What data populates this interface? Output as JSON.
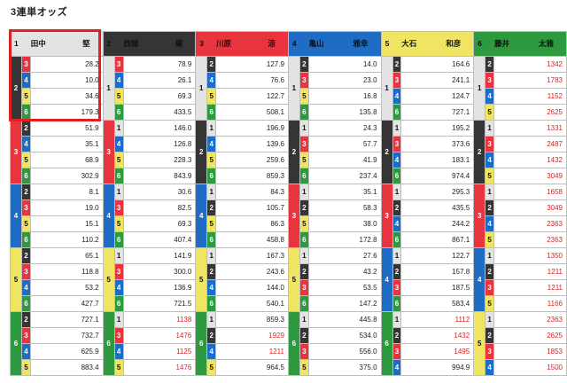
{
  "page_title": "3連単オッズ",
  "colors": {
    "1": "#ffffff",
    "2": "#353535",
    "3": "#e8343f",
    "4": "#1e6cc4",
    "5": "#f0e562",
    "6": "#2e9a3f",
    "highlight": "#e02020",
    "hot_odds": "#e21c1c"
  },
  "racers": [
    {
      "num": "1",
      "name": "田中",
      "given": "堅"
    },
    {
      "num": "2",
      "name": "西舘",
      "given": "健"
    },
    {
      "num": "3",
      "name": "川原",
      "given": "涼"
    },
    {
      "num": "4",
      "name": "亀山",
      "given": "雅幸"
    },
    {
      "num": "5",
      "name": "大石",
      "given": "和彦"
    },
    {
      "num": "6",
      "name": "藤井",
      "given": "太雅"
    }
  ],
  "hot_threshold": 1000,
  "blocks": [
    {
      "s": [
        "2",
        "3",
        "4",
        "5",
        "6",
        "3",
        "4",
        "5",
        "6",
        "2",
        "4",
        "5",
        "6",
        "2",
        "3",
        "5",
        "6",
        "2",
        "3",
        "4",
        "6",
        "2",
        "3",
        "4",
        "5"
      ],
      "t": [
        "3",
        "4",
        "5",
        "6",
        "2",
        "4",
        "5",
        "6",
        "2",
        "3",
        "5",
        "6",
        "2",
        "3",
        "4",
        "6",
        "2",
        "3",
        "4",
        "5",
        "2",
        "3",
        "4",
        "5",
        "2"
      ]
    }
  ],
  "columns": [
    {
      "first": "1",
      "rows": [
        [
          "2",
          "3",
          "28.2"
        ],
        [
          "2",
          "4",
          "10.0"
        ],
        [
          "2",
          "5",
          "34.6"
        ],
        [
          "2",
          "6",
          "179.3"
        ],
        [
          "3",
          "2",
          "51.9"
        ],
        [
          "3",
          "4",
          "35.1"
        ],
        [
          "3",
          "5",
          "68.9"
        ],
        [
          "3",
          "6",
          "302.9"
        ],
        [
          "4",
          "2",
          "8.1"
        ],
        [
          "4",
          "3",
          "19.0"
        ],
        [
          "4",
          "5",
          "15.1"
        ],
        [
          "4",
          "6",
          "110.2"
        ],
        [
          "5",
          "2",
          "65.1"
        ],
        [
          "5",
          "3",
          "118.8"
        ],
        [
          "5",
          "4",
          "53.2"
        ],
        [
          "5",
          "6",
          "427.7"
        ],
        [
          "6",
          "2",
          "727.1"
        ],
        [
          "6",
          "3",
          "732.7"
        ],
        [
          "6",
          "4",
          "625.9"
        ],
        [
          "6",
          "5",
          "883.4"
        ]
      ]
    },
    {
      "first": "2",
      "rows": [
        [
          "1",
          "3",
          "78.9"
        ],
        [
          "1",
          "4",
          "26.1"
        ],
        [
          "1",
          "5",
          "69.3"
        ],
        [
          "1",
          "6",
          "433.5"
        ],
        [
          "3",
          "1",
          "146.0"
        ],
        [
          "3",
          "4",
          "126.8"
        ],
        [
          "3",
          "5",
          "228.3"
        ],
        [
          "3",
          "6",
          "843.9"
        ],
        [
          "4",
          "1",
          "30.6"
        ],
        [
          "4",
          "3",
          "82.5"
        ],
        [
          "4",
          "5",
          "69.3"
        ],
        [
          "4",
          "6",
          "407.4"
        ],
        [
          "5",
          "1",
          "141.9"
        ],
        [
          "5",
          "3",
          "300.0"
        ],
        [
          "5",
          "4",
          "136.9"
        ],
        [
          "5",
          "6",
          "721.5"
        ],
        [
          "6",
          "1",
          "1138"
        ],
        [
          "6",
          "3",
          "1476"
        ],
        [
          "6",
          "4",
          "1125"
        ],
        [
          "6",
          "5",
          "1476"
        ]
      ]
    },
    {
      "first": "3",
      "rows": [
        [
          "1",
          "2",
          "127.9"
        ],
        [
          "1",
          "4",
          "76.6"
        ],
        [
          "1",
          "5",
          "122.7"
        ],
        [
          "1",
          "6",
          "508.1"
        ],
        [
          "2",
          "1",
          "196.9"
        ],
        [
          "2",
          "4",
          "139.6"
        ],
        [
          "2",
          "5",
          "259.6"
        ],
        [
          "2",
          "6",
          "859.3"
        ],
        [
          "4",
          "1",
          "84.3"
        ],
        [
          "4",
          "2",
          "105.7"
        ],
        [
          "4",
          "5",
          "86.3"
        ],
        [
          "4",
          "6",
          "458.8"
        ],
        [
          "5",
          "1",
          "167.3"
        ],
        [
          "5",
          "2",
          "243.6"
        ],
        [
          "5",
          "4",
          "144.0"
        ],
        [
          "5",
          "6",
          "540.1"
        ],
        [
          "6",
          "1",
          "859.3"
        ],
        [
          "6",
          "2",
          "1929"
        ],
        [
          "6",
          "4",
          "1211"
        ],
        [
          "6",
          "5",
          "964.5"
        ]
      ]
    },
    {
      "first": "4",
      "rows": [
        [
          "1",
          "2",
          "14.0"
        ],
        [
          "1",
          "3",
          "23.0"
        ],
        [
          "1",
          "5",
          "16.8"
        ],
        [
          "1",
          "6",
          "135.8"
        ],
        [
          "2",
          "1",
          "24.3"
        ],
        [
          "2",
          "3",
          "57.7"
        ],
        [
          "2",
          "5",
          "41.9"
        ],
        [
          "2",
          "6",
          "237.4"
        ],
        [
          "3",
          "1",
          "35.1"
        ],
        [
          "3",
          "2",
          "58.3"
        ],
        [
          "3",
          "5",
          "38.0"
        ],
        [
          "3",
          "6",
          "172.8"
        ],
        [
          "5",
          "1",
          "27.6"
        ],
        [
          "5",
          "2",
          "43.2"
        ],
        [
          "5",
          "3",
          "53.5"
        ],
        [
          "5",
          "6",
          "147.2"
        ],
        [
          "6",
          "1",
          "445.8"
        ],
        [
          "6",
          "2",
          "534.0"
        ],
        [
          "6",
          "3",
          "556.0"
        ],
        [
          "6",
          "5",
          "375.0"
        ]
      ]
    },
    {
      "first": "5",
      "rows": [
        [
          "1",
          "2",
          "164.6"
        ],
        [
          "1",
          "3",
          "241.1"
        ],
        [
          "1",
          "4",
          "124.7"
        ],
        [
          "1",
          "6",
          "727.1"
        ],
        [
          "2",
          "1",
          "195.2"
        ],
        [
          "2",
          "3",
          "373.6"
        ],
        [
          "2",
          "4",
          "183.1"
        ],
        [
          "2",
          "6",
          "974.4"
        ],
        [
          "3",
          "1",
          "295.3"
        ],
        [
          "3",
          "2",
          "435.5"
        ],
        [
          "3",
          "4",
          "244.2"
        ],
        [
          "3",
          "6",
          "867.1"
        ],
        [
          "4",
          "1",
          "122.7"
        ],
        [
          "4",
          "2",
          "157.8"
        ],
        [
          "4",
          "3",
          "187.5"
        ],
        [
          "4",
          "6",
          "583.4"
        ],
        [
          "6",
          "1",
          "1112"
        ],
        [
          "6",
          "2",
          "1432"
        ],
        [
          "6",
          "3",
          "1495"
        ],
        [
          "6",
          "4",
          "994.9"
        ]
      ]
    },
    {
      "first": "6",
      "rows": [
        [
          "1",
          "2",
          "1342"
        ],
        [
          "1",
          "3",
          "1783"
        ],
        [
          "1",
          "4",
          "1152"
        ],
        [
          "1",
          "5",
          "2625"
        ],
        [
          "2",
          "1",
          "1331"
        ],
        [
          "2",
          "3",
          "2487"
        ],
        [
          "2",
          "4",
          "1432"
        ],
        [
          "2",
          "5",
          "3049"
        ],
        [
          "3",
          "1",
          "1658"
        ],
        [
          "3",
          "2",
          "3049"
        ],
        [
          "3",
          "4",
          "2363"
        ],
        [
          "3",
          "5",
          "2363"
        ],
        [
          "4",
          "1",
          "1350"
        ],
        [
          "4",
          "2",
          "1211"
        ],
        [
          "4",
          "3",
          "1211"
        ],
        [
          "4",
          "5",
          "1166"
        ],
        [
          "5",
          "1",
          "2363"
        ],
        [
          "5",
          "2",
          "2625"
        ],
        [
          "5",
          "3",
          "1853"
        ],
        [
          "5",
          "4",
          "1500"
        ]
      ]
    }
  ]
}
